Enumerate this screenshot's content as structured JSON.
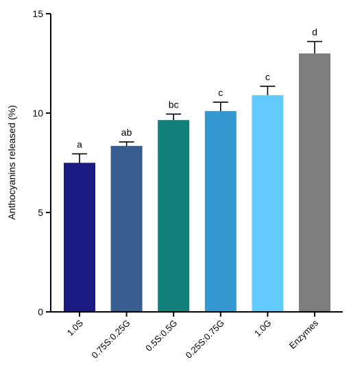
{
  "chart_data": {
    "type": "bar",
    "title": "",
    "xlabel": "",
    "ylabel": "Anthocyanins released (%)",
    "ylim": [
      0,
      15
    ],
    "yticks": [
      0,
      5,
      10,
      15
    ],
    "grid": false,
    "categories": [
      "1.0S",
      "0.75S:0.25G",
      "0.5S:0.5G",
      "0.25S:0.75G",
      "1.0G",
      "Enzymes"
    ],
    "values": [
      7.5,
      8.35,
      9.65,
      10.1,
      10.9,
      13.0
    ],
    "errors": [
      0.45,
      0.2,
      0.3,
      0.45,
      0.45,
      0.6
    ],
    "significance": [
      "a",
      "ab",
      "bc",
      "c",
      "c",
      "d"
    ],
    "colors": [
      "#1b1a80",
      "#375e8e",
      "#127f7a",
      "#3597cf",
      "#63cbfc",
      "#7d7d7d"
    ]
  }
}
